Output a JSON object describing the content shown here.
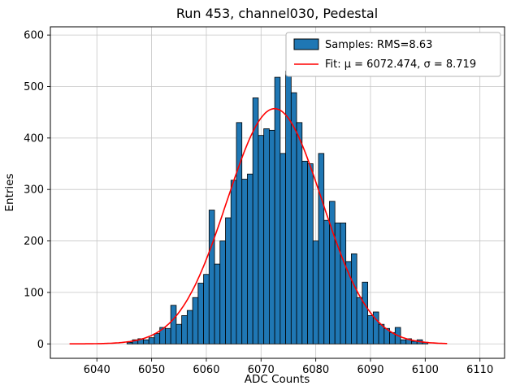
{
  "figure": {
    "title": "Run 453, channel030, Pedestal"
  },
  "chart_data": {
    "type": "bar",
    "title": "Run 453, channel030, Pedestal",
    "xlabel": "ADC Counts",
    "ylabel": "Entries",
    "xlim": [
      6031.5,
      6114.5
    ],
    "ylim": [
      -28,
      616
    ],
    "xticks": [
      6040,
      6050,
      6060,
      6070,
      6080,
      6090,
      6100,
      6110
    ],
    "yticks": [
      0,
      100,
      200,
      300,
      400,
      500,
      600
    ],
    "grid": true,
    "legend_position": "upper right",
    "bar_color": "#1f77b4",
    "bar_edge_color": "#000000",
    "fit_color": "#ff0000",
    "bin_width": 1,
    "bin_centers": [
      6046,
      6047,
      6048,
      6049,
      6050,
      6051,
      6052,
      6053,
      6054,
      6055,
      6056,
      6057,
      6058,
      6059,
      6060,
      6061,
      6062,
      6063,
      6064,
      6065,
      6066,
      6067,
      6068,
      6069,
      6070,
      6071,
      6072,
      6073,
      6074,
      6075,
      6076,
      6077,
      6078,
      6079,
      6080,
      6081,
      6082,
      6083,
      6084,
      6085,
      6086,
      6087,
      6088,
      6089,
      6090,
      6091,
      6092,
      6093,
      6094,
      6095,
      6096,
      6097,
      6098,
      6099,
      6100
    ],
    "counts": [
      3,
      8,
      10,
      8,
      12,
      20,
      32,
      30,
      75,
      38,
      55,
      65,
      90,
      118,
      135,
      260,
      155,
      200,
      245,
      318,
      430,
      320,
      330,
      478,
      405,
      418,
      415,
      518,
      370,
      530,
      488,
      430,
      355,
      350,
      200,
      370,
      240,
      277,
      235,
      235,
      160,
      175,
      90,
      120,
      55,
      62,
      38,
      30,
      22,
      32,
      8,
      10,
      5,
      8,
      3
    ],
    "fit": {
      "mu": 6072.474,
      "sigma": 8.719,
      "rms": 8.63,
      "amplitude": 457,
      "x_start": 6035,
      "x_end": 6104
    },
    "legend_entries": [
      {
        "label": "Samples: RMS=8.63",
        "swatch": "patch",
        "color": "#1f77b4"
      },
      {
        "label": "Fit: μ = 6072.474, σ = 8.719",
        "swatch": "line",
        "color": "#ff0000"
      }
    ]
  }
}
